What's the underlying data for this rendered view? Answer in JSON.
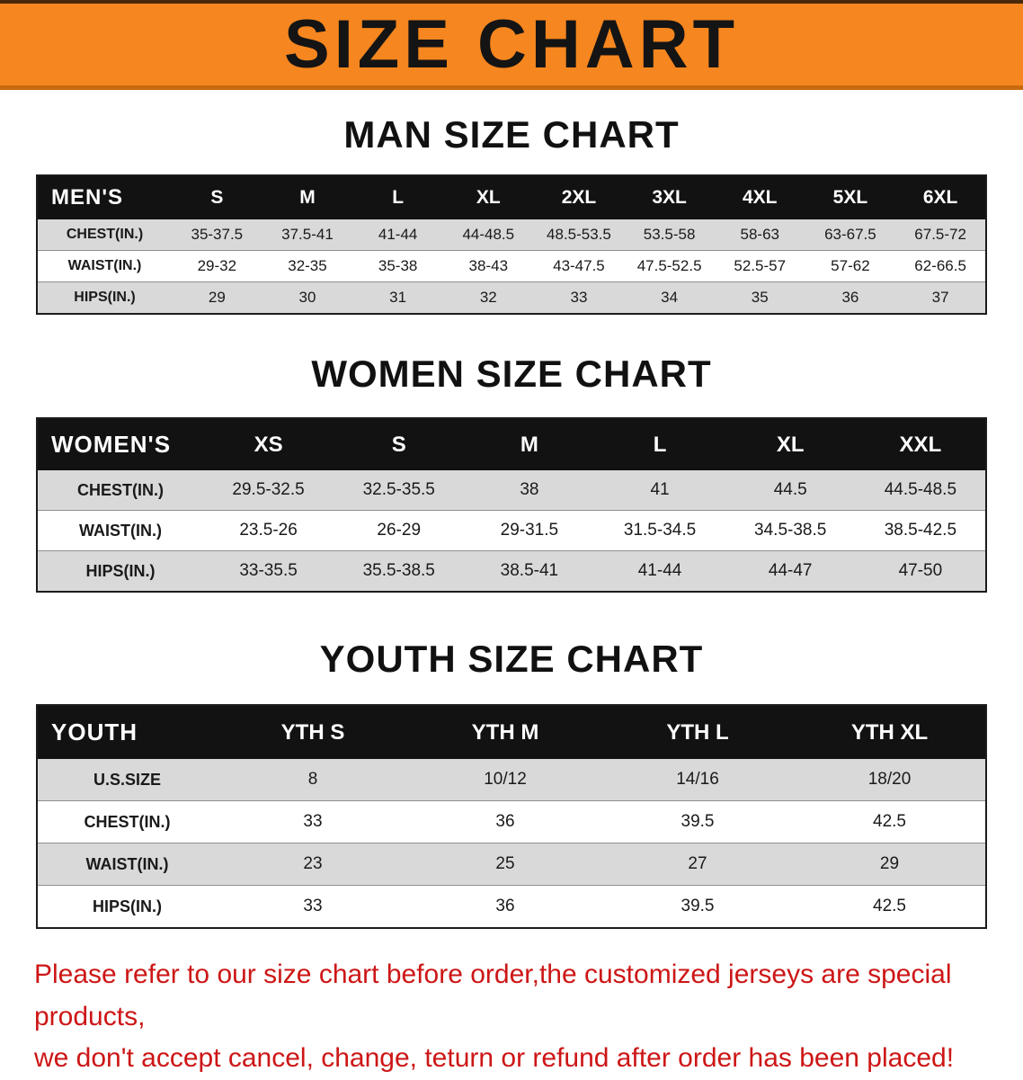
{
  "banner": {
    "title": "SIZE CHART"
  },
  "colors": {
    "banner_background": "#f6861f",
    "table_header_background": "#121212",
    "row_stripe": "#d9d9d9",
    "note_text": "#cd1616"
  },
  "chart_data": [
    {
      "type": "table",
      "title": "MAN SIZE CHART",
      "columns": [
        "MEN'S",
        "S",
        "M",
        "L",
        "XL",
        "2XL",
        "3XL",
        "4XL",
        "5XL",
        "6XL"
      ],
      "rows": [
        [
          "CHEST(IN.)",
          "35-37.5",
          "37.5-41",
          "41-44",
          "44-48.5",
          "48.5-53.5",
          "53.5-58",
          "58-63",
          "63-67.5",
          "67.5-72"
        ],
        [
          "WAIST(IN.)",
          "29-32",
          "32-35",
          "35-38",
          "38-43",
          "43-47.5",
          "47.5-52.5",
          "52.5-57",
          "57-62",
          "62-66.5"
        ],
        [
          "HIPS(IN.)",
          "29",
          "30",
          "31",
          "32",
          "33",
          "34",
          "35",
          "36",
          "37"
        ]
      ]
    },
    {
      "type": "table",
      "title": "WOMEN SIZE CHART",
      "columns": [
        "WOMEN'S",
        "XS",
        "S",
        "M",
        "L",
        "XL",
        "XXL"
      ],
      "rows": [
        [
          "CHEST(IN.)",
          "29.5-32.5",
          "32.5-35.5",
          "38",
          "41",
          "44.5",
          "44.5-48.5"
        ],
        [
          "WAIST(IN.)",
          "23.5-26",
          "26-29",
          "29-31.5",
          "31.5-34.5",
          "34.5-38.5",
          "38.5-42.5"
        ],
        [
          "HIPS(IN.)",
          "33-35.5",
          "35.5-38.5",
          "38.5-41",
          "41-44",
          "44-47",
          "47-50"
        ]
      ]
    },
    {
      "type": "table",
      "title": "YOUTH SIZE CHART",
      "columns": [
        "YOUTH",
        "YTH S",
        "YTH M",
        "YTH L",
        "YTH XL"
      ],
      "rows": [
        [
          "U.S.SIZE",
          "8",
          "10/12",
          "14/16",
          "18/20"
        ],
        [
          "CHEST(IN.)",
          "33",
          "36",
          "39.5",
          "42.5"
        ],
        [
          "WAIST(IN.)",
          "23",
          "25",
          "27",
          "29"
        ],
        [
          "HIPS(IN.)",
          "33",
          "36",
          "39.5",
          "42.5"
        ]
      ]
    }
  ],
  "note": {
    "line1": "Please refer to our size chart before order,the customized jerseys are special products,",
    "line2": "we don't accept cancel, change, teturn or refund after order has been placed!"
  }
}
